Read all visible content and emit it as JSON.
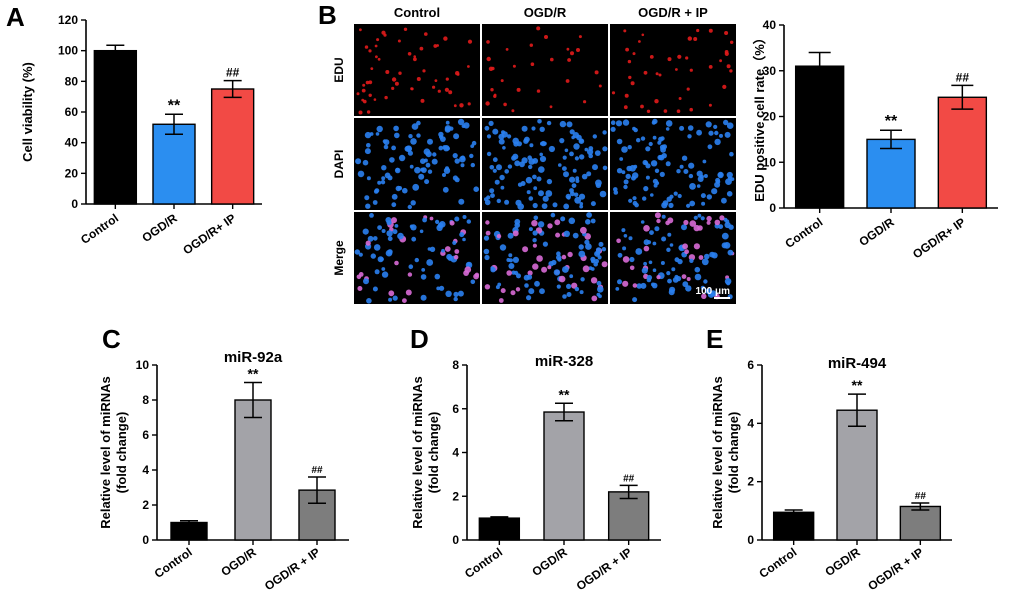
{
  "colors": {
    "control": "#000000",
    "ogdr": "#2b8ef0",
    "ogdr_ip": "#f24a45",
    "mirna_control": "#000000",
    "mirna_ogdr": "#a3a3a8",
    "mirna_ogdr_ip": "#7d7d7d",
    "edu": "#e21b1b",
    "dapi": "#2a7ff0",
    "merge": "#d86ad6"
  },
  "panel_letters": [
    "A",
    "B",
    "C",
    "D",
    "E"
  ],
  "microscopy": {
    "columns": [
      "Control",
      "OGD/R",
      "OGD/R + IP"
    ],
    "rows": [
      "EDU",
      "DAPI",
      "Merge"
    ],
    "scale_bar": "100 μm"
  },
  "chart_data": [
    {
      "id": "A",
      "type": "bar",
      "title": "",
      "xlabel": "",
      "ylabel": "Cell viability (%)",
      "categories": [
        "Control",
        "OGD/R",
        "OGD/R+ IP"
      ],
      "values": [
        100,
        52,
        75
      ],
      "errors": [
        3.5,
        6.5,
        5.5
      ],
      "significance": [
        "",
        "**",
        "##"
      ],
      "ylim": [
        0,
        120
      ],
      "yticks": [
        "0",
        "20",
        "40",
        "60",
        "80",
        "100",
        "120"
      ],
      "palette": [
        "control",
        "ogdr",
        "ogdr_ip"
      ]
    },
    {
      "id": "B",
      "type": "bar",
      "title": "",
      "xlabel": "",
      "ylabel": "EDU positive cell rate（%）",
      "categories": [
        "Control",
        "OGD/R",
        "OGD/R+ IP"
      ],
      "values": [
        31,
        15,
        24.2
      ],
      "errors": [
        3.0,
        2.0,
        2.6
      ],
      "significance": [
        "",
        "**",
        "##"
      ],
      "ylim": [
        0,
        40
      ],
      "yticks": [
        "0",
        "10",
        "20",
        "30",
        "40"
      ],
      "palette": [
        "control",
        "ogdr",
        "ogdr_ip"
      ]
    },
    {
      "id": "C",
      "type": "bar",
      "title": "miR-92a",
      "xlabel": "",
      "ylabel": "Relative level of miRNAs (fold change)",
      "categories": [
        "Control",
        "OGD/R",
        "OGD/R + IP"
      ],
      "values": [
        1.0,
        8.0,
        2.85
      ],
      "errors": [
        0.1,
        1.0,
        0.75
      ],
      "significance": [
        "",
        "**",
        "##"
      ],
      "ylim": [
        0,
        10
      ],
      "yticks": [
        "0",
        "2",
        "4",
        "6",
        "8",
        "10"
      ],
      "palette": [
        "mirna_control",
        "mirna_ogdr",
        "mirna_ogdr_ip"
      ]
    },
    {
      "id": "D",
      "type": "bar",
      "title": "miR-328",
      "xlabel": "",
      "ylabel": "Relative level of miRNAs (fold change)",
      "categories": [
        "Control",
        "OGD/R",
        "OGD/R + IP"
      ],
      "values": [
        1.0,
        5.85,
        2.2
      ],
      "errors": [
        0.06,
        0.4,
        0.3
      ],
      "significance": [
        "",
        "**",
        "##"
      ],
      "ylim": [
        0,
        8
      ],
      "yticks": [
        "0",
        "2",
        "4",
        "6",
        "8"
      ],
      "palette": [
        "mirna_control",
        "mirna_ogdr",
        "mirna_ogdr_ip"
      ]
    },
    {
      "id": "E",
      "type": "bar",
      "title": "miR-494",
      "xlabel": "",
      "ylabel": "Relative level of miRNAs (fold change)",
      "categories": [
        "Control",
        "OGD/R",
        "OGD/R + IP"
      ],
      "values": [
        0.95,
        4.45,
        1.15
      ],
      "errors": [
        0.08,
        0.55,
        0.12
      ],
      "significance": [
        "",
        "**",
        "##"
      ],
      "ylim": [
        0,
        6
      ],
      "yticks": [
        "0",
        "2",
        "4",
        "6"
      ],
      "palette": [
        "mirna_control",
        "mirna_ogdr",
        "mirna_ogdr_ip"
      ]
    }
  ]
}
